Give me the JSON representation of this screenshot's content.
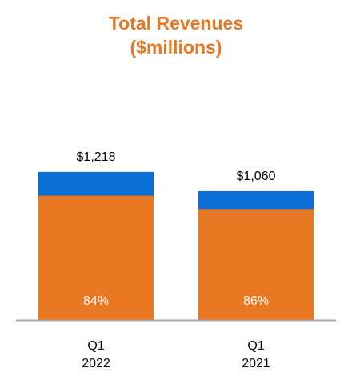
{
  "chart_data": {
    "type": "bar",
    "stacked": true,
    "title_line1": "Total Revenues",
    "title_line2": "($millions)",
    "categories": [
      {
        "line1": "Q1",
        "line2": "2022"
      },
      {
        "line1": "Q1",
        "line2": "2021"
      }
    ],
    "totals": [
      1218,
      1060
    ],
    "total_labels": [
      "$1,218",
      "$1,060"
    ],
    "share_labels": [
      "84%",
      "86%"
    ],
    "series": [
      {
        "color": "#E87722",
        "values": [
          1023,
          912
        ],
        "percent": [
          84,
          86
        ]
      },
      {
        "color": "#0A6FD6",
        "values": [
          195,
          148
        ],
        "percent": [
          16,
          14
        ]
      }
    ],
    "ylim": [
      0,
      1500
    ],
    "grid": false,
    "legend": "none",
    "colors": {
      "title": "#E87722",
      "primary": "#E87722",
      "secondary": "#0A6FD6",
      "baseline": "#A6A6A6",
      "text": "#000000",
      "inner_label": "#FFFFFF"
    }
  }
}
